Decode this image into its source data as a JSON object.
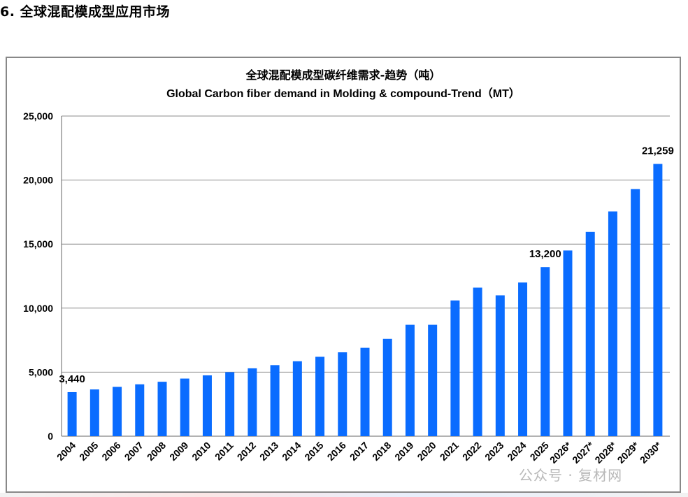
{
  "heading": "6.  全球混配模成型应用市场",
  "watermark": "公众号 · 复材网",
  "chart_data": {
    "type": "bar",
    "title": "全球混配模成型碳纤维需求-趋势（吨）",
    "subtitle": "Global Carbon fiber demand in Molding & compound-Trend（MT）",
    "xlabel": "",
    "ylabel": "",
    "ylim": [
      0,
      25000
    ],
    "yticks": [
      0,
      5000,
      10000,
      15000,
      20000,
      25000
    ],
    "ytick_labels": [
      "0",
      "5,000",
      "10,000",
      "15,000",
      "20,000",
      "25,000"
    ],
    "grid": true,
    "bar_color": "#0A6CFF",
    "categories": [
      "2004",
      "2005",
      "2006",
      "2007",
      "2008",
      "2009",
      "2010",
      "2011",
      "2012",
      "2013",
      "2014",
      "2015",
      "2016",
      "2017",
      "2018",
      "2019",
      "2020",
      "2021",
      "2022",
      "2023",
      "2024",
      "2025",
      "2026*",
      "2027*",
      "2028*",
      "2029*",
      "2030*"
    ],
    "values": [
      3440,
      3650,
      3850,
      4050,
      4250,
      4500,
      4750,
      5000,
      5300,
      5550,
      5850,
      6200,
      6550,
      6900,
      7600,
      8700,
      8700,
      10600,
      11600,
      11000,
      12000,
      13200,
      14500,
      15950,
      17550,
      19300,
      21259
    ],
    "data_labels": [
      {
        "index": 0,
        "text": "3,440"
      },
      {
        "index": 21,
        "text": "13,200"
      },
      {
        "index": 26,
        "text": "21,259"
      }
    ]
  }
}
